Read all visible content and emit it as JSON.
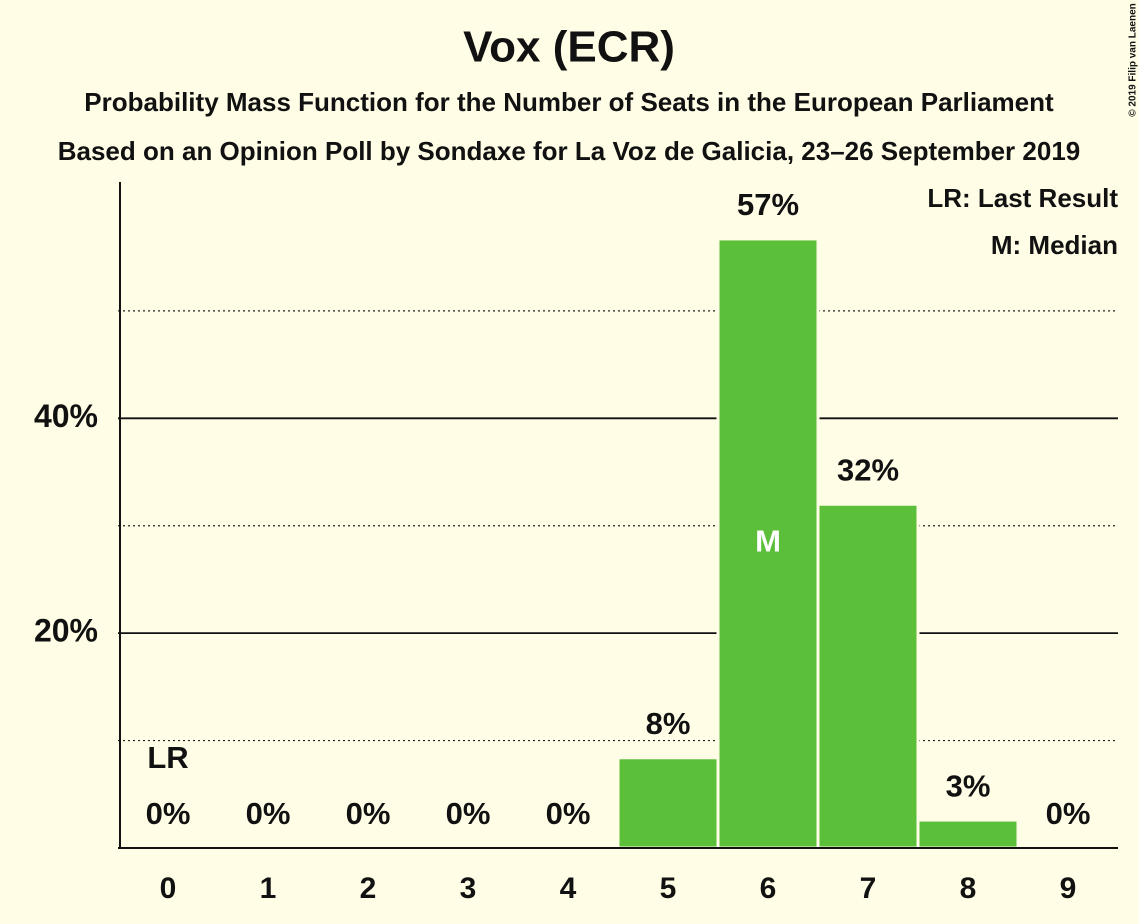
{
  "chart_data": {
    "type": "bar",
    "title": "Vox (ECR)",
    "subtitle": "Probability Mass Function for the Number of Seats in the European Parliament",
    "subtitle2": "Based on an Opinion Poll by Sondaxe for La Voz de Galicia, 23–26 September 2019",
    "copyright": "© 2019 Filip van Laenen",
    "categories": [
      "0",
      "1",
      "2",
      "3",
      "4",
      "5",
      "6",
      "7",
      "8",
      "9"
    ],
    "values": [
      0,
      0,
      0,
      0,
      0,
      8.4,
      56.7,
      32,
      2.6,
      0
    ],
    "value_labels": [
      "0%",
      "0%",
      "0%",
      "0%",
      "0%",
      "8%",
      "57%",
      "32%",
      "3%",
      "0%"
    ],
    "color": "#5bbf3a",
    "ylim": [
      0,
      62
    ],
    "yticks": [
      {
        "value": 20,
        "label": "20%"
      },
      {
        "value": 40,
        "label": "40%"
      }
    ],
    "minor_gridlines": [
      10,
      30,
      50
    ],
    "grid": true,
    "last_result": {
      "label": "LR",
      "seats": 0,
      "legend": "LR: Last Result"
    },
    "median": {
      "label": "M",
      "seats": 6,
      "legend": "M: Median"
    }
  }
}
